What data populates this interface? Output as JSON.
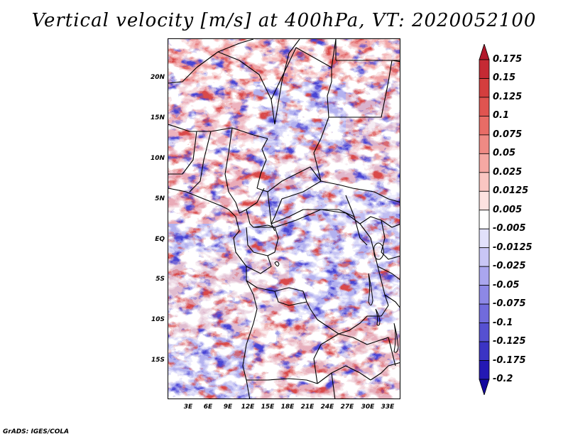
{
  "title": "Vertical velocity [m/s] at 400hPa, VT: 2020052100",
  "credit": "GrADS: IGES/COLA",
  "map": {
    "lat_labels": [
      "20N",
      "15N",
      "10N",
      "5N",
      "EQ",
      "5S",
      "10S",
      "15S"
    ],
    "lon_labels": [
      "3E",
      "6E",
      "9E",
      "12E",
      "15E",
      "18E",
      "21E",
      "24E",
      "27E",
      "30E",
      "33E"
    ],
    "lat_range": [
      -20,
      25
    ],
    "lon_range": [
      0,
      35
    ]
  },
  "colorbar": {
    "levels": [
      "0.175",
      "0.15",
      "0.125",
      "0.1",
      "0.075",
      "0.05",
      "0.025",
      "0.0125",
      "0.005",
      "-0.005",
      "-0.0125",
      "-0.025",
      "-0.05",
      "-0.075",
      "-0.1",
      "-0.125",
      "-0.175",
      "-0.2"
    ],
    "colors": [
      "#b2182b",
      "#c52a34",
      "#d43e3e",
      "#e05450",
      "#e86c66",
      "#ef8a84",
      "#f5a8a3",
      "#fac6c2",
      "#fde2e0",
      "#ffffff",
      "#e2e1fb",
      "#c9c6f5",
      "#aaa6ee",
      "#8d88e6",
      "#716bdc",
      "#5650d1",
      "#3b34c4",
      "#2418b4",
      "#14089e"
    ]
  }
}
